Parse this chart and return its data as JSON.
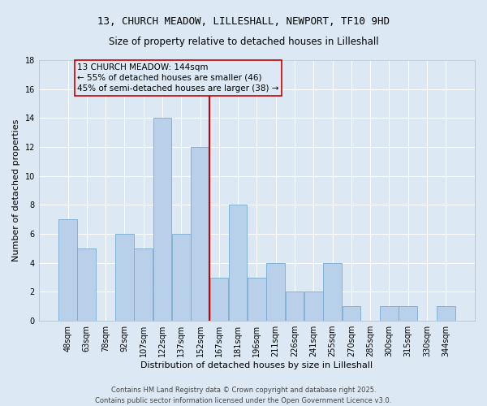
{
  "title_line1": "13, CHURCH MEADOW, LILLESHALL, NEWPORT, TF10 9HD",
  "title_line2": "Size of property relative to detached houses in Lilleshall",
  "xlabel": "Distribution of detached houses by size in Lilleshall",
  "ylabel": "Number of detached properties",
  "footer": "Contains HM Land Registry data © Crown copyright and database right 2025.\nContains public sector information licensed under the Open Government Licence v3.0.",
  "bin_labels": [
    "48sqm",
    "63sqm",
    "78sqm",
    "92sqm",
    "107sqm",
    "122sqm",
    "137sqm",
    "152sqm",
    "167sqm",
    "181sqm",
    "196sqm",
    "211sqm",
    "226sqm",
    "241sqm",
    "255sqm",
    "270sqm",
    "285sqm",
    "300sqm",
    "315sqm",
    "330sqm",
    "344sqm"
  ],
  "bar_heights": [
    7,
    5,
    0,
    6,
    5,
    14,
    6,
    12,
    3,
    8,
    3,
    4,
    2,
    2,
    4,
    1,
    0,
    1,
    1,
    0,
    1
  ],
  "bar_color": "#B8D0EA",
  "bar_edge_color": "#7AAACE",
  "background_color": "#DCE9F5",
  "grid_color": "#FFFFFF",
  "vline_color": "#CC0000",
  "vline_x_index": 7.5,
  "annotation_text": "13 CHURCH MEADOW: 144sqm\n← 55% of detached houses are smaller (46)\n45% of semi-detached houses are larger (38) →",
  "annotation_box_edgecolor": "#CC0000",
  "ylim": [
    0,
    18
  ],
  "yticks": [
    0,
    2,
    4,
    6,
    8,
    10,
    12,
    14,
    16,
    18
  ],
  "title_fontsize": 9,
  "subtitle_fontsize": 8.5,
  "ylabel_fontsize": 8,
  "xlabel_fontsize": 8,
  "tick_fontsize": 7,
  "footer_fontsize": 6,
  "annot_fontsize": 7.5
}
